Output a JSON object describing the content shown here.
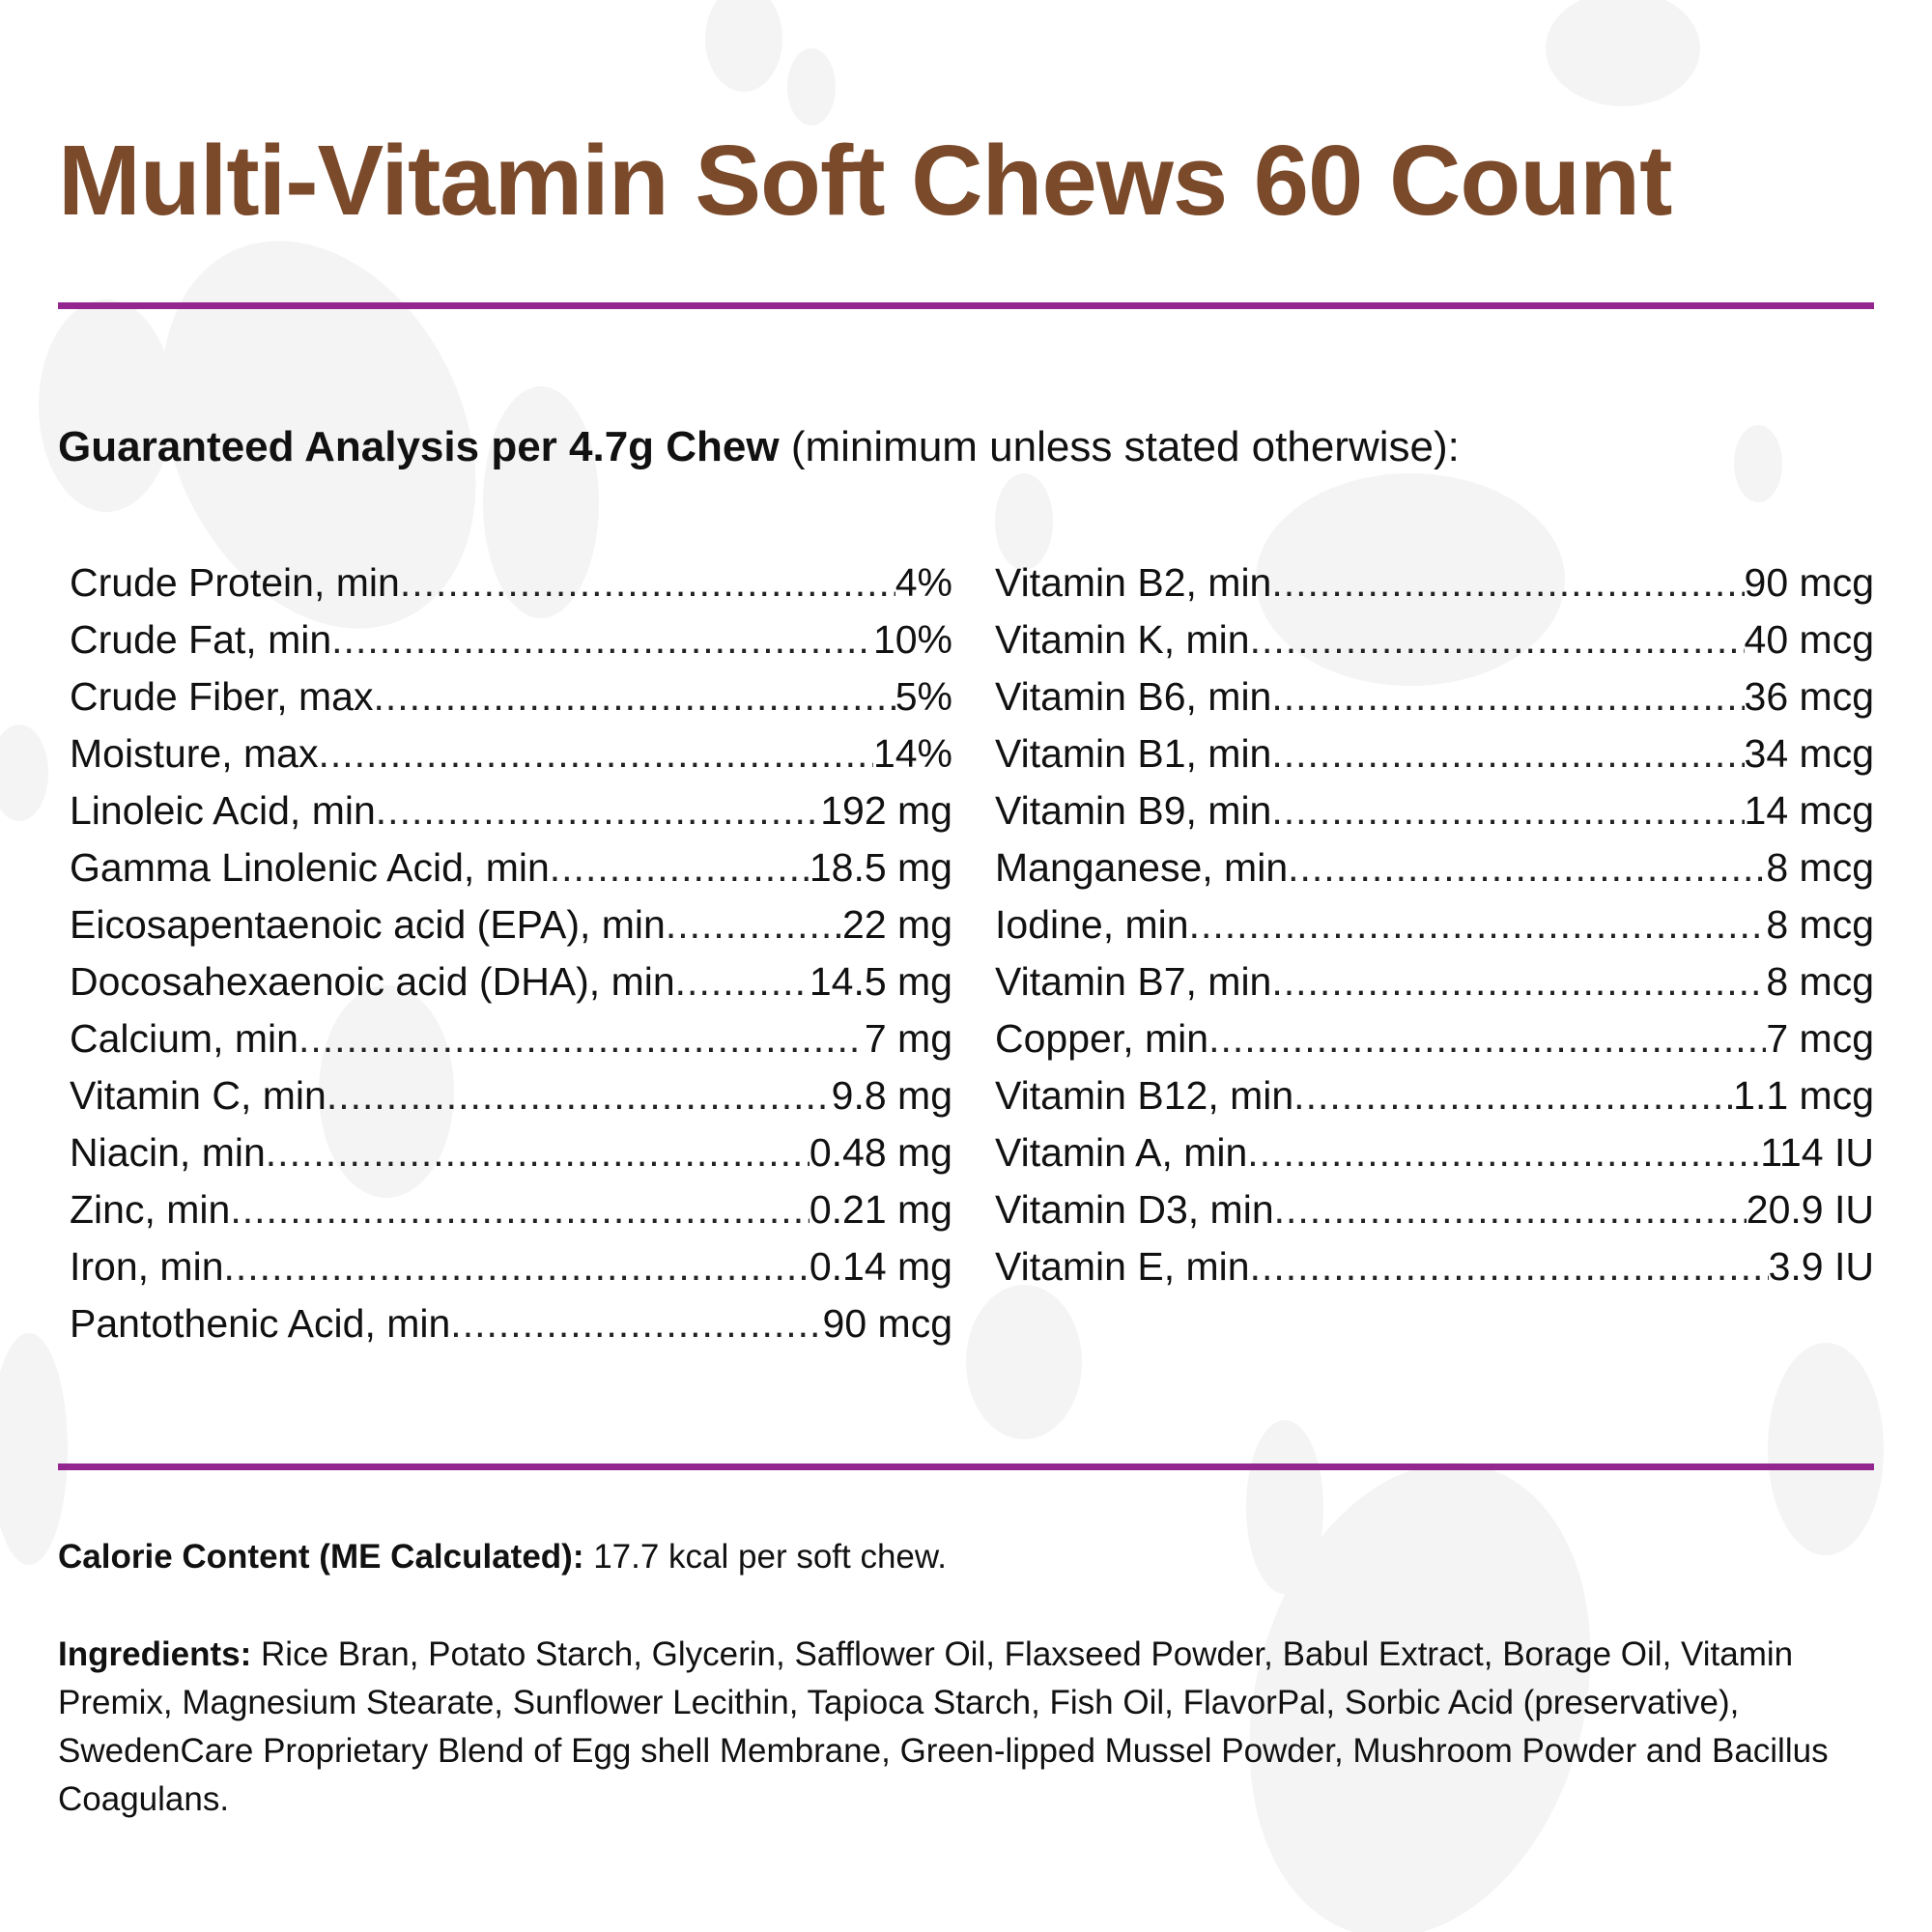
{
  "colors": {
    "title": "#7a4a2b",
    "accent": "#93268f",
    "paw_background": "#f3f4f3"
  },
  "title": "Multi-Vitamin Soft Chews 60 Count",
  "guaranteed_analysis": {
    "heading_bold": "Guaranteed Analysis per 4.7g Chew",
    "heading_note": " (minimum unless stated otherwise):",
    "left_column": [
      {
        "label": "Crude Protein, min",
        "value": "4%"
      },
      {
        "label": "Crude Fat, min",
        "value": "10%"
      },
      {
        "label": "Crude Fiber, max",
        "value": "5%"
      },
      {
        "label": "Moisture, max",
        "value": "14%"
      },
      {
        "label": "Linoleic Acid, min",
        "value": "192 mg"
      },
      {
        "label": "Gamma Linolenic Acid, min",
        "value": "18.5 mg"
      },
      {
        "label": "Eicosapentaenoic acid (EPA), min",
        "value": "22 mg"
      },
      {
        "label": "Docosahexaenoic acid (DHA), min",
        "value": "14.5 mg"
      },
      {
        "label": "Calcium, min",
        "value": "7 mg"
      },
      {
        "label": "Vitamin C, min",
        "value": "9.8 mg"
      },
      {
        "label": "Niacin, min",
        "value": "0.48 mg"
      },
      {
        "label": "Zinc, min",
        "value": "0.21 mg"
      },
      {
        "label": "Iron, min",
        "value": "0.14 mg"
      },
      {
        "label": "Pantothenic Acid, min",
        "value": "90 mcg"
      }
    ],
    "right_column": [
      {
        "label": "Vitamin B2, min",
        "value": "90 mcg"
      },
      {
        "label": "Vitamin K, min",
        "value": "40 mcg"
      },
      {
        "label": "Vitamin B6, min",
        "value": "36 mcg"
      },
      {
        "label": "Vitamin B1, min",
        "value": "34 mcg"
      },
      {
        "label": "Vitamin B9, min",
        "value": "14 mcg"
      },
      {
        "label": "Manganese, min",
        "value": "8 mcg"
      },
      {
        "label": "Iodine, min",
        "value": "8 mcg"
      },
      {
        "label": "Vitamin B7, min",
        "value": "8 mcg"
      },
      {
        "label": "Copper, min",
        "value": "7 mcg"
      },
      {
        "label": "Vitamin B12, min",
        "value": "1.1 mcg"
      },
      {
        "label": "Vitamin A, min",
        "value": "114 IU"
      },
      {
        "label": "Vitamin D3, min",
        "value": "20.9 IU"
      },
      {
        "label": "Vitamin E, min",
        "value": "3.9 IU"
      }
    ]
  },
  "calorie": {
    "label": "Calorie Content (ME Calculated):",
    "text": " 17.7 kcal per soft chew."
  },
  "ingredients": {
    "label": "Ingredients:",
    "text": " Rice Bran, Potato Starch, Glycerin, Safflower Oil, Flaxseed Powder, Babul Extract, Borage Oil, Vitamin Premix, Magnesium Stearate, Sunflower Lecithin, Tapioca Starch, Fish Oil, FlavorPal, Sorbic Acid (preservative), SwedenCare Proprietary Blend of Egg shell Membrane, Green-lipped Mussel Powder, Mushroom Powder and Bacillus Coagulans."
  }
}
